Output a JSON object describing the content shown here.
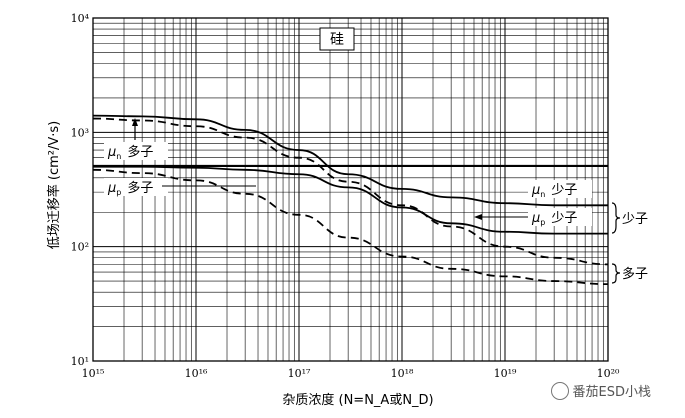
{
  "chart_data": {
    "type": "line",
    "title": "硅",
    "xlabel": "杂质浓度 (N=N_A或N_D)",
    "ylabel": "低场迁移率 (cm²/V·s)",
    "xscale": "log",
    "yscale": "log",
    "xlim": [
      1000000000000000.0,
      1e+20
    ],
    "ylim": [
      10,
      10000
    ],
    "grid": true,
    "x_ticks": [
      "10¹⁵",
      "10¹⁶",
      "10¹⁷",
      "10¹⁸",
      "10¹⁹",
      "10²⁰"
    ],
    "y_ticks": [
      "10¹",
      "10²",
      "10³",
      "10⁴"
    ],
    "x": [
      1000000000000000.0,
      3000000000000000.0,
      1e+16,
      3e+16,
      1e+17,
      3e+17,
      1e+18,
      3e+18,
      1e+19,
      3e+19,
      1e+20
    ],
    "series": [
      {
        "label": "μn 少子",
        "style": "solid",
        "values": [
          1400,
          1380,
          1300,
          1050,
          700,
          430,
          320,
          270,
          240,
          230,
          230
        ]
      },
      {
        "label": "μn 多子",
        "style": "dashed",
        "values": [
          1320,
          1270,
          1130,
          900,
          600,
          370,
          230,
          150,
          100,
          80,
          70
        ]
      },
      {
        "label": "μp 少子",
        "style": "solid",
        "values": [
          500,
          500,
          490,
          470,
          430,
          330,
          220,
          160,
          135,
          130,
          130
        ]
      },
      {
        "label": "μp 多子",
        "style": "dashed",
        "values": [
          470,
          440,
          380,
          290,
          190,
          120,
          82,
          64,
          55,
          50,
          47
        ]
      },
      {
        "label": "",
        "style": "solid",
        "values": [
          510,
          510,
          510,
          510,
          510,
          510,
          510,
          510,
          510,
          510,
          510
        ]
      }
    ],
    "annotations": {
      "mu_n": "μ",
      "sub_n": "n",
      "mu_p": "μ",
      "sub_p": "p",
      "majority": "多子",
      "minority": "少子"
    }
  },
  "watermark": "番茄ESD小栈"
}
